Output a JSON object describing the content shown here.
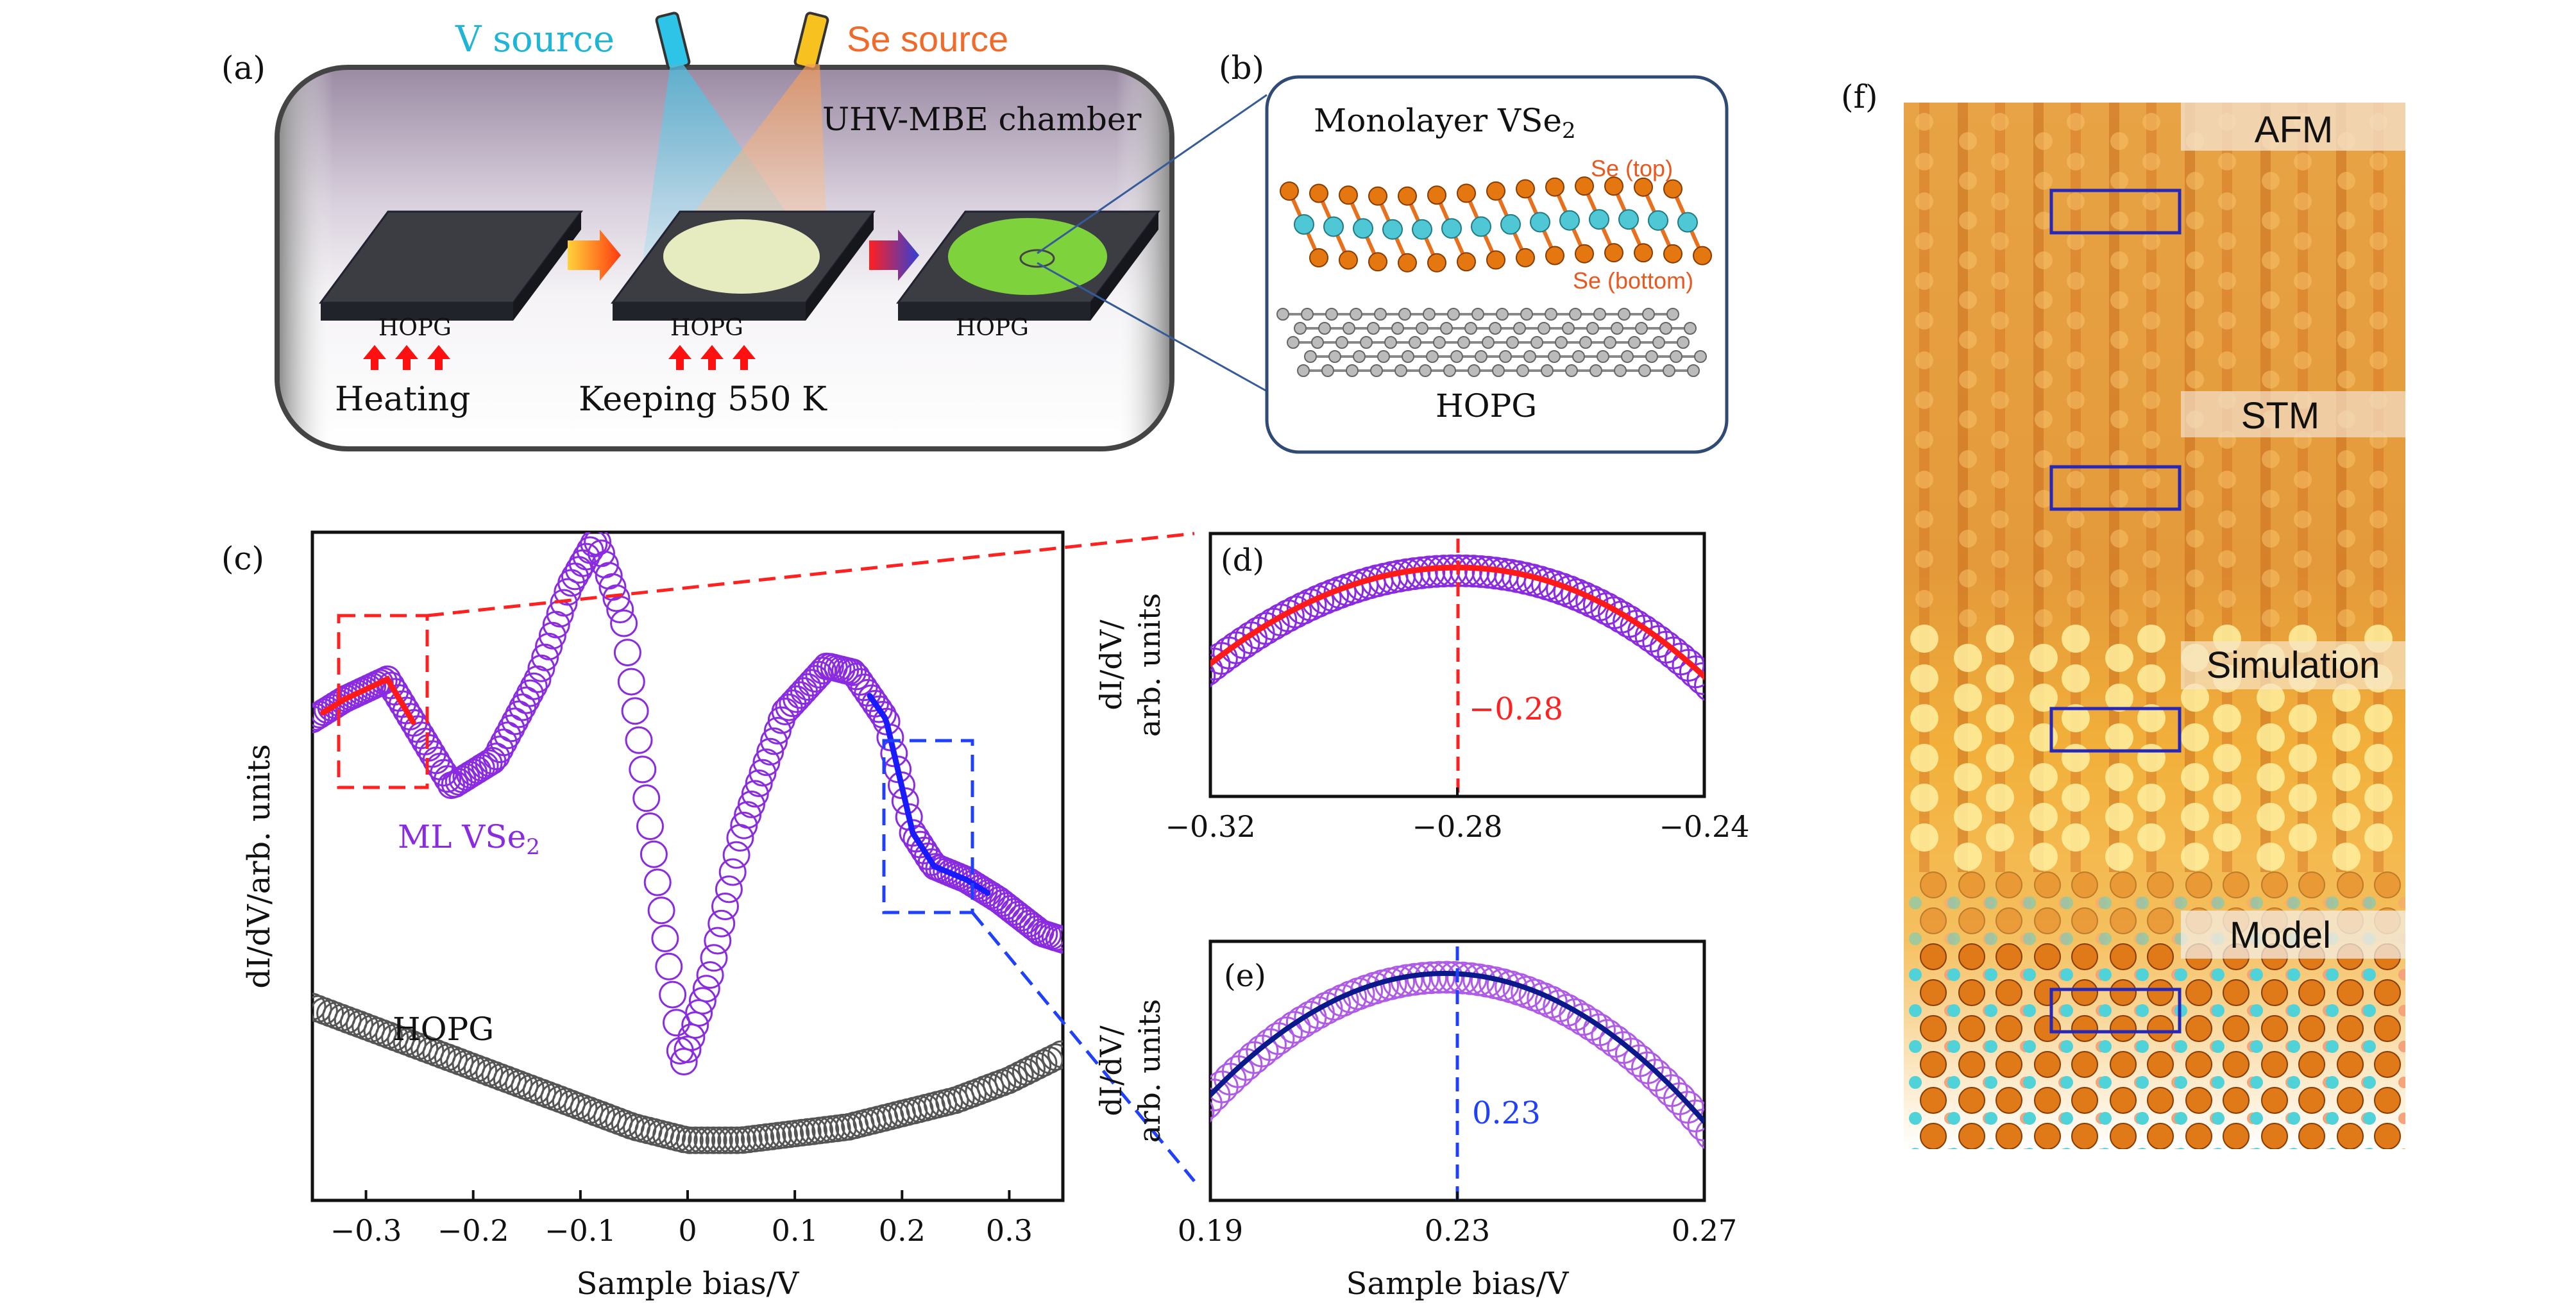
{
  "panels": {
    "a": {
      "label": "(a)",
      "v_source": "V source",
      "se_source": "Se source",
      "chamber": "UHV-MBE chamber",
      "substrate_label": "HOPG",
      "heating": "Heating",
      "keeping": "Keeping 550 K"
    },
    "b": {
      "label": "(b)",
      "title": "Monolayer VSe",
      "title_sub": "2",
      "se_top": "Se (top)",
      "se_bottom": "Se (bottom)",
      "hopg": "HOPG"
    },
    "c": {
      "label": "(c)",
      "ylabel": "dI/dV/arb. units",
      "xlabel": "Sample bias/V",
      "ml_label": "ML VSe",
      "ml_sub": "2",
      "hopg_label": "HOPG",
      "xticks": [
        "−0.3",
        "−0.2",
        "−0.1",
        "0",
        "0.1",
        "0.2",
        "0.3"
      ]
    },
    "d": {
      "label": "(d)",
      "ylabel1": "dI/dV/",
      "ylabel2": "arb. units",
      "peak_label": "−0.28",
      "xticks": [
        "−0.32",
        "−0.28",
        "−0.24"
      ]
    },
    "e": {
      "label": "(e)",
      "ylabel1": "dI/dV/",
      "ylabel2": "arb. units",
      "peak_label": "0.23",
      "xticks": [
        "0.19",
        "0.23",
        "0.27"
      ],
      "xlabel": "Sample bias/V"
    },
    "f": {
      "label": "(f)",
      "sections": [
        "AFM",
        "STM",
        "Simulation",
        "Model"
      ]
    }
  },
  "colors": {
    "v_source": "#1fb5d6",
    "se_source": "#f06a2a",
    "purple": "#8a2be2",
    "red_fit": "#ff1a1a",
    "blue_fit": "#1a1aff",
    "hopg_gray": "#555555",
    "box_red": "#ff2020",
    "box_blue": "#2040ff"
  },
  "chart_data": [
    {
      "type": "scatter",
      "panel": "c",
      "xlabel": "Sample bias/V",
      "ylabel": "dI/dV/arb. units",
      "xlim": [
        -0.35,
        0.35
      ],
      "series": [
        {
          "name": "ML VSe2",
          "x": [
            -0.35,
            -0.32,
            -0.28,
            -0.25,
            -0.22,
            -0.18,
            -0.14,
            -0.11,
            -0.085,
            -0.06,
            -0.04,
            -0.02,
            -0.005,
            0.02,
            0.05,
            0.09,
            0.13,
            0.155,
            0.185,
            0.21,
            0.23,
            0.26,
            0.29,
            0.33,
            0.35
          ],
          "y": [
            0.72,
            0.75,
            0.78,
            0.7,
            0.62,
            0.66,
            0.78,
            0.92,
            0.99,
            0.87,
            0.62,
            0.38,
            0.2,
            0.33,
            0.55,
            0.73,
            0.8,
            0.79,
            0.72,
            0.55,
            0.5,
            0.48,
            0.45,
            0.4,
            0.39
          ]
        },
        {
          "name": "HOPG",
          "x": [
            -0.35,
            -0.3,
            -0.25,
            -0.2,
            -0.15,
            -0.1,
            -0.05,
            0,
            0.05,
            0.1,
            0.15,
            0.2,
            0.25,
            0.3,
            0.35
          ],
          "y": [
            0.29,
            0.26,
            0.23,
            0.2,
            0.17,
            0.14,
            0.11,
            0.09,
            0.09,
            0.1,
            0.11,
            0.13,
            0.15,
            0.18,
            0.22
          ]
        }
      ]
    },
    {
      "type": "scatter",
      "panel": "d",
      "xlim": [
        -0.32,
        -0.24
      ],
      "peak": -0.28
    },
    {
      "type": "scatter",
      "panel": "e",
      "xlabel": "Sample bias/V",
      "xlim": [
        0.19,
        0.27
      ],
      "peak": 0.23
    }
  ]
}
